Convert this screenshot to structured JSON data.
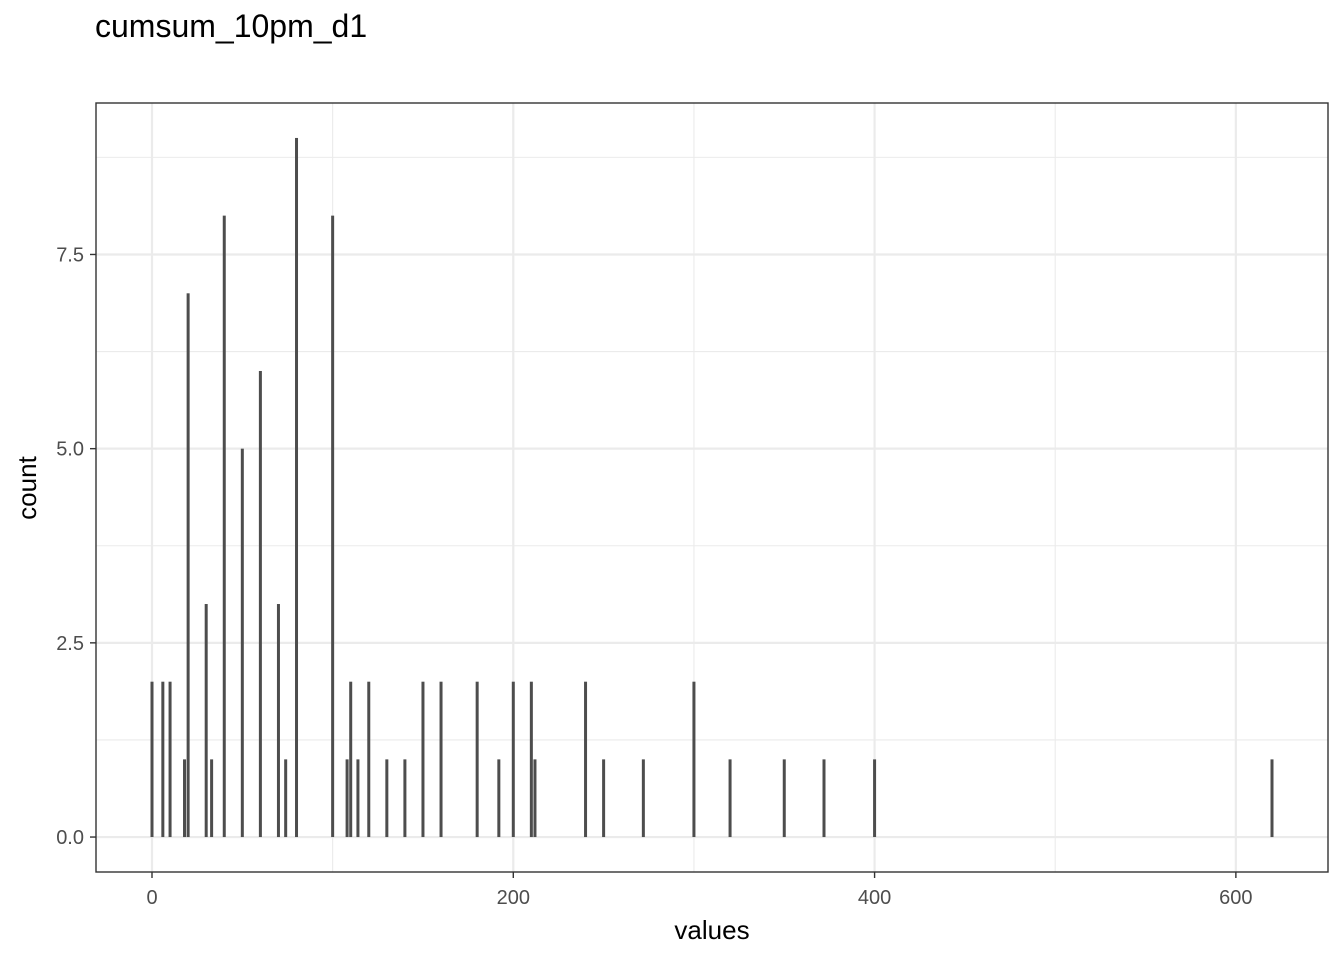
{
  "chart_data": {
    "type": "bar",
    "title": "cumsum_10pm_d1",
    "xlabel": "values",
    "ylabel": "count",
    "xlim": [
      -31,
      651
    ],
    "ylim": [
      -0.45,
      9.45
    ],
    "x_ticks": [
      0,
      200,
      400,
      600
    ],
    "x_tick_labels": [
      "0",
      "200",
      "400",
      "600"
    ],
    "y_ticks": [
      0,
      2.5,
      5,
      7.5
    ],
    "y_tick_labels": [
      "0.0",
      "2.5",
      "5.0",
      "7.5"
    ],
    "grid": true,
    "bar_color": "#4d4d4d",
    "x": [
      0,
      6,
      10,
      18,
      20,
      30,
      33,
      40,
      50,
      60,
      70,
      74,
      80,
      100,
      108,
      110,
      114,
      120,
      130,
      140,
      150,
      160,
      180,
      192,
      200,
      210,
      212,
      240,
      250,
      272,
      300,
      320,
      350,
      372,
      400,
      620
    ],
    "values": [
      2,
      2,
      2,
      1,
      7,
      3,
      1,
      8,
      5,
      6,
      3,
      1,
      9,
      8,
      1,
      2,
      1,
      2,
      1,
      1,
      2,
      2,
      2,
      1,
      2,
      2,
      1,
      2,
      1,
      1,
      2,
      1,
      1,
      1,
      1,
      1
    ]
  }
}
